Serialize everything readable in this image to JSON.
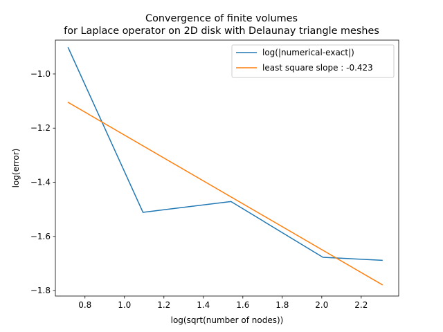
{
  "chart_data": {
    "type": "line",
    "title": "Convergence of finite volumes\nfor Laplace operator on 2D disk with Delaunay triangle meshes",
    "title_lines": [
      "Convergence of finite volumes",
      "for Laplace operator on 2D disk with Delaunay triangle meshes"
    ],
    "xlabel": "log(sqrt(number of nodes))",
    "ylabel": "log(error)",
    "xlim": [
      0.65,
      2.39
    ],
    "ylim": [
      -1.82,
      -0.875
    ],
    "xticks": [
      0.8,
      1.0,
      1.2,
      1.4,
      1.6,
      1.8,
      2.0,
      2.2
    ],
    "xtick_labels": [
      "0.8",
      "1.0",
      "1.2",
      "1.4",
      "1.6",
      "1.8",
      "2.0",
      "2.2"
    ],
    "yticks": [
      -1.8,
      -1.6,
      -1.4,
      -1.2,
      -1.0
    ],
    "ytick_labels": [
      "−1.8",
      "−1.6",
      "−1.4",
      "−1.2",
      "−1.0"
    ],
    "grid": false,
    "legend_position": "top-right",
    "series": [
      {
        "name": "log(|numerical-exact|)",
        "color": "#1f77b4",
        "x": [
          0.715,
          1.094,
          1.54,
          2.006,
          2.306
        ],
        "y": [
          -0.903,
          -1.511,
          -1.471,
          -1.677,
          -1.688
        ]
      },
      {
        "name": "least square slope : -0.423",
        "color": "#ff7f0e",
        "x": [
          0.715,
          2.306
        ],
        "y": [
          -1.105,
          -1.778
        ]
      }
    ]
  }
}
